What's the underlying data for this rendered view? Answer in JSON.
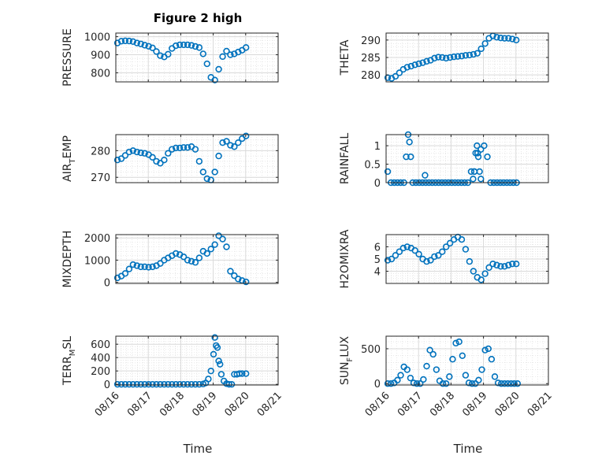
{
  "figure": {
    "title": "Figure 2 high",
    "xlabel": "Time",
    "marker_color": "#0072BD",
    "grid_color": "#d9d9d9",
    "xticks": [
      "08/16",
      "08/17",
      "08/18",
      "08/19",
      "08/20",
      "08/21"
    ]
  },
  "chart_data": [
    {
      "type": "scatter",
      "ylabel": "PRESSURE",
      "marker": "circle",
      "xlim": [
        0,
        5
      ],
      "ylim": [
        750,
        1020
      ],
      "yticks": [
        800,
        900,
        1000
      ],
      "x": [
        0.05,
        0.17,
        0.29,
        0.41,
        0.53,
        0.65,
        0.77,
        0.89,
        1.01,
        1.13,
        1.25,
        1.37,
        1.49,
        1.61,
        1.73,
        1.85,
        1.97,
        2.09,
        2.21,
        2.33,
        2.45,
        2.57,
        2.69,
        2.81,
        2.93,
        3.05,
        3.17,
        3.29,
        3.41,
        3.53,
        3.65,
        3.77,
        3.89,
        4.01
      ],
      "y": [
        965,
        975,
        977,
        976,
        973,
        965,
        960,
        953,
        947,
        938,
        918,
        895,
        888,
        903,
        935,
        950,
        955,
        955,
        955,
        952,
        946,
        940,
        905,
        850,
        775,
        760,
        820,
        890,
        920,
        900,
        905,
        915,
        925,
        940
      ]
    },
    {
      "type": "scatter",
      "ylabel": "THETA",
      "marker": "circle",
      "xlim": [
        0,
        5
      ],
      "ylim": [
        278,
        292
      ],
      "yticks": [
        280,
        285,
        290
      ],
      "x": [
        0.05,
        0.17,
        0.29,
        0.41,
        0.53,
        0.65,
        0.77,
        0.89,
        1.01,
        1.13,
        1.25,
        1.37,
        1.49,
        1.61,
        1.73,
        1.85,
        1.97,
        2.09,
        2.21,
        2.33,
        2.45,
        2.57,
        2.69,
        2.81,
        2.93,
        3.05,
        3.17,
        3.29,
        3.41,
        3.53,
        3.65,
        3.77,
        3.89,
        4.01
      ],
      "y": [
        279.2,
        279.0,
        279.6,
        280.6,
        281.6,
        282.2,
        282.5,
        282.9,
        283.2,
        283.5,
        283.9,
        284.2,
        284.8,
        285.1,
        285.0,
        284.8,
        285.0,
        285.2,
        285.3,
        285.4,
        285.6,
        285.7,
        285.9,
        286.2,
        287.5,
        289.0,
        290.5,
        291.2,
        290.8,
        290.6,
        290.5,
        290.5,
        290.3,
        290.0
      ]
    },
    {
      "type": "scatter",
      "ylabel": "AIR_T_EMP",
      "marker": "circle",
      "xlim": [
        0,
        5
      ],
      "ylim": [
        268,
        286
      ],
      "yticks": [
        270,
        280
      ],
      "x": [
        0.05,
        0.17,
        0.29,
        0.41,
        0.53,
        0.65,
        0.77,
        0.89,
        1.01,
        1.13,
        1.25,
        1.37,
        1.49,
        1.61,
        1.73,
        1.85,
        1.97,
        2.09,
        2.21,
        2.33,
        2.45,
        2.57,
        2.69,
        2.81,
        2.93,
        3.05,
        3.17,
        3.29,
        3.41,
        3.53,
        3.65,
        3.77,
        3.89,
        4.01
      ],
      "y": [
        276.5,
        277.0,
        278.2,
        279.5,
        280.0,
        279.5,
        279.2,
        279.0,
        278.5,
        277.5,
        276.0,
        275.3,
        276.5,
        279.0,
        280.5,
        281.0,
        281.0,
        281.2,
        281.2,
        281.5,
        280.5,
        276.0,
        272.0,
        269.5,
        269.0,
        272.0,
        278.0,
        283.0,
        283.5,
        282.0,
        281.5,
        283.0,
        284.5,
        285.5
      ]
    },
    {
      "type": "scatter",
      "ylabel": "RAINFALL",
      "marker": "circle",
      "xlim": [
        0,
        5
      ],
      "ylim": [
        0,
        1.3
      ],
      "yticks": [
        0,
        0.5,
        1
      ],
      "x": [
        0.05,
        0.15,
        0.25,
        0.35,
        0.45,
        0.55,
        0.62,
        0.68,
        0.72,
        0.76,
        0.82,
        0.92,
        1.02,
        1.12,
        1.22,
        1.32,
        1.42,
        1.52,
        1.62,
        1.72,
        1.82,
        1.92,
        2.02,
        2.12,
        2.22,
        2.32,
        2.42,
        2.52,
        2.62,
        2.72,
        2.82,
        2.92,
        3.02,
        3.12,
        3.22,
        3.32,
        3.42,
        3.52,
        3.62,
        3.72,
        3.82,
        3.92,
        4.02,
        1.2,
        2.68,
        2.72,
        2.76,
        2.8,
        2.84,
        2.88,
        2.92
      ],
      "y": [
        0.3,
        0,
        0,
        0,
        0,
        0,
        0.7,
        1.3,
        1.1,
        0.7,
        0,
        0,
        0,
        0,
        0,
        0,
        0,
        0,
        0,
        0,
        0,
        0,
        0,
        0,
        0,
        0,
        0,
        0,
        0.3,
        0.3,
        0.8,
        0.9,
        1.0,
        0.7,
        0,
        0,
        0,
        0,
        0,
        0,
        0,
        0,
        0,
        0.2,
        0.1,
        0.3,
        0.8,
        1.0,
        0.7,
        0.3,
        0.1
      ]
    },
    {
      "type": "scatter",
      "ylabel": "MIXDEPTH",
      "marker": "circle",
      "xlim": [
        0,
        5
      ],
      "ylim": [
        -50,
        2150
      ],
      "yticks": [
        0,
        1000,
        2000
      ],
      "x": [
        0.05,
        0.17,
        0.29,
        0.41,
        0.53,
        0.65,
        0.77,
        0.89,
        1.01,
        1.13,
        1.25,
        1.37,
        1.49,
        1.61,
        1.73,
        1.85,
        1.97,
        2.09,
        2.21,
        2.33,
        2.45,
        2.57,
        2.69,
        2.81,
        2.93,
        3.05,
        3.17,
        3.29,
        3.41,
        3.53,
        3.65,
        3.77,
        3.89,
        4.01
      ],
      "y": [
        200,
        280,
        400,
        600,
        800,
        750,
        700,
        700,
        680,
        700,
        750,
        850,
        1000,
        1100,
        1200,
        1300,
        1250,
        1150,
        1000,
        950,
        900,
        1100,
        1400,
        1300,
        1500,
        1700,
        2100,
        1950,
        1600,
        500,
        300,
        150,
        80,
        20
      ]
    },
    {
      "type": "scatter",
      "ylabel": "H2OMIXRA",
      "marker": "circle",
      "xlim": [
        0,
        5
      ],
      "ylim": [
        3.0,
        7.0
      ],
      "yticks": [
        4,
        5,
        6
      ],
      "x": [
        0.05,
        0.17,
        0.29,
        0.41,
        0.53,
        0.65,
        0.77,
        0.89,
        1.01,
        1.13,
        1.25,
        1.37,
        1.49,
        1.61,
        1.73,
        1.85,
        1.97,
        2.09,
        2.21,
        2.33,
        2.45,
        2.57,
        2.69,
        2.81,
        2.93,
        3.05,
        3.17,
        3.29,
        3.41,
        3.53,
        3.65,
        3.77,
        3.89,
        4.01
      ],
      "y": [
        4.9,
        5.0,
        5.3,
        5.6,
        5.9,
        6.0,
        5.9,
        5.7,
        5.4,
        5.0,
        4.8,
        4.9,
        5.2,
        5.3,
        5.6,
        6.0,
        6.3,
        6.6,
        6.8,
        6.6,
        5.8,
        4.8,
        4.0,
        3.5,
        3.3,
        3.8,
        4.3,
        4.6,
        4.5,
        4.4,
        4.4,
        4.5,
        4.6,
        4.6
      ]
    },
    {
      "type": "scatter",
      "ylabel": "TERR_M_SL",
      "marker": "circle",
      "xlim": [
        0,
        5
      ],
      "ylim": [
        -10,
        720
      ],
      "yticks": [
        0,
        200,
        400,
        600
      ],
      "x": [
        0.05,
        0.17,
        0.29,
        0.41,
        0.53,
        0.65,
        0.77,
        0.89,
        1.01,
        1.13,
        1.25,
        1.37,
        1.49,
        1.61,
        1.73,
        1.85,
        1.97,
        2.09,
        2.21,
        2.33,
        2.45,
        2.57,
        2.69,
        2.77,
        2.85,
        2.93,
        3.01,
        3.05,
        3.09,
        3.13,
        3.17,
        3.21,
        3.25,
        3.33,
        3.41,
        3.49,
        3.57,
        3.65,
        3.73,
        3.81,
        3.89,
        4.01
      ],
      "y": [
        0,
        0,
        0,
        0,
        0,
        0,
        0,
        0,
        0,
        0,
        0,
        0,
        0,
        0,
        0,
        0,
        0,
        0,
        0,
        0,
        0,
        0,
        5,
        20,
        80,
        200,
        450,
        700,
        580,
        550,
        350,
        300,
        150,
        50,
        10,
        0,
        0,
        150,
        150,
        160,
        160,
        160
      ]
    },
    {
      "type": "scatter",
      "ylabel": "SUN_F_LUX",
      "marker": "circle",
      "xlim": [
        0,
        5
      ],
      "ylim": [
        -20,
        680
      ],
      "yticks": [
        0,
        500
      ],
      "x": [
        0.05,
        0.15,
        0.25,
        0.35,
        0.45,
        0.55,
        0.65,
        0.75,
        0.85,
        0.95,
        1.05,
        1.15,
        1.25,
        1.35,
        1.45,
        1.55,
        1.65,
        1.75,
        1.85,
        1.95,
        2.05,
        2.15,
        2.25,
        2.35,
        2.45,
        2.55,
        2.65,
        2.75,
        2.85,
        2.95,
        3.05,
        3.15,
        3.25,
        3.35,
        3.45,
        3.55,
        3.65,
        3.75,
        3.85,
        3.95,
        4.05
      ],
      "y": [
        0,
        0,
        10,
        50,
        120,
        240,
        200,
        80,
        10,
        0,
        0,
        60,
        250,
        480,
        420,
        200,
        40,
        0,
        0,
        100,
        350,
        580,
        600,
        400,
        120,
        10,
        0,
        0,
        50,
        200,
        480,
        500,
        350,
        100,
        10,
        0,
        0,
        0,
        0,
        0,
        0
      ]
    }
  ]
}
